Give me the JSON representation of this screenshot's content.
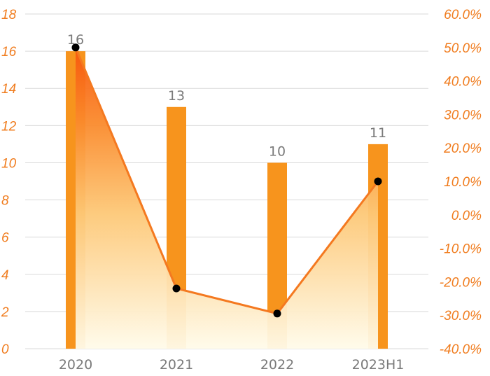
{
  "chart_data": {
    "type": "bar",
    "categories": [
      "2020",
      "2021",
      "2022",
      "2023H1"
    ],
    "series": [
      {
        "type": "bar",
        "axis": "left",
        "values": [
          16,
          13,
          10,
          11
        ],
        "color": "#f7941d"
      },
      {
        "type": "line",
        "axis": "right",
        "values": [
          50.0,
          -22.0,
          -29.5,
          10.0
        ],
        "color": "#f47920",
        "marker_color": "#000000"
      }
    ],
    "y_left": {
      "min": 0,
      "max": 18,
      "ticks": [
        "0",
        "2",
        "4",
        "6",
        "8",
        "10",
        "12",
        "14",
        "16",
        "18"
      ]
    },
    "y_right": {
      "min": -40,
      "max": 60,
      "ticks": [
        "-40.0%",
        "-30.0%",
        "-20.0%",
        "-10.0%",
        "0.0%",
        "10.0%",
        "20.0%",
        "30.0%",
        "40.0%",
        "50.0%",
        "60.0%"
      ]
    },
    "bar_labels": [
      "16",
      "13",
      "10",
      "11"
    ],
    "grid": true,
    "colors": {
      "tick": "#f07c1e",
      "grid": "#d9d9d9",
      "area_top": "#f7560d",
      "area_bottom": "#fffbea"
    }
  }
}
